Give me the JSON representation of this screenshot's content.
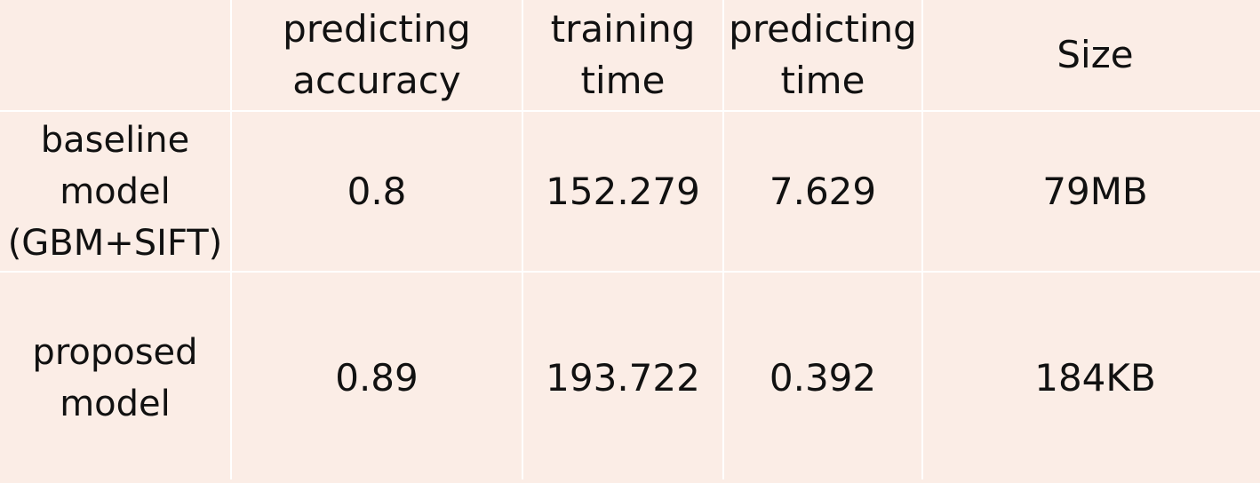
{
  "table": {
    "columns": [
      "",
      "predicting\naccuracy",
      "training\ntime",
      "predicting\ntime",
      "Size"
    ],
    "rows": [
      {
        "label": "baseline\nmodel\n(GBM+SIFT)",
        "accuracy": "0.8",
        "training_time": "152.279",
        "predicting_time": "7.629",
        "size": "79MB"
      },
      {
        "label": "proposed\nmodel",
        "accuracy": "0.89",
        "training_time": "193.722",
        "predicting_time": "0.392",
        "size": "184KB"
      }
    ]
  }
}
